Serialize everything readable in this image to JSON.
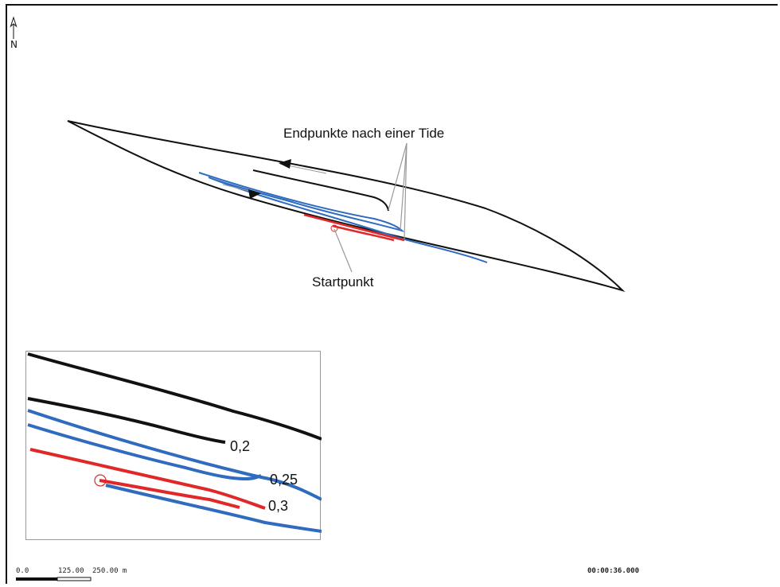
{
  "labels": {
    "endpoints": "Endpunkte nach einer Tide",
    "start": "Startpunkt"
  },
  "north_arrow": {
    "label": "N",
    "icon": "north-arrow-icon"
  },
  "inset": {
    "tracks": [
      {
        "label": "0,2",
        "color": "#111111"
      },
      {
        "label": "0,25",
        "color": "#2f6bbf"
      },
      {
        "label": "0,3",
        "color": "#e02828"
      }
    ]
  },
  "scale_bar": {
    "tick_0": "0.0",
    "tick_1": "125.00",
    "tick_2": "250.00 m"
  },
  "time_readout": "00:00:36.000",
  "colors": {
    "boundary": "#111111",
    "track_black": "#111111",
    "track_blue": "#2f6bbf",
    "track_red": "#e02828",
    "callout": "#999999"
  }
}
